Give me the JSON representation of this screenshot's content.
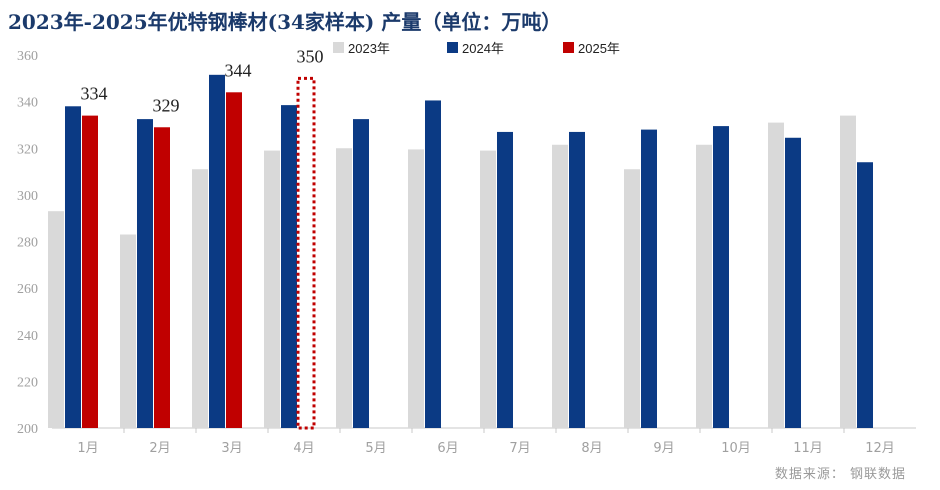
{
  "title": "2023年-2025年优特钢棒材(34家样本) 产量（单位：万吨）",
  "source": "数据来源：  钢联数据",
  "colors": {
    "s2023": "#d9d9d9",
    "s2024": "#0b3a84",
    "s2025": "#c00000",
    "forecast": "#c00000"
  },
  "chart_data": {
    "type": "bar",
    "title": "2023年-2025年优特钢棒材(34家样本) 产量（单位：万吨）",
    "xlabel": "",
    "ylabel": "",
    "ylim": [
      200,
      360
    ],
    "yticks": [
      200,
      220,
      240,
      260,
      280,
      300,
      320,
      340,
      360
    ],
    "grid": false,
    "legend_position": "top-center",
    "categories": [
      "1月",
      "2月",
      "3月",
      "4月",
      "5月",
      "6月",
      "7月",
      "8月",
      "9月",
      "10月",
      "11月",
      "12月"
    ],
    "series": [
      {
        "name": "2023年",
        "values": [
          293,
          283,
          311,
          319,
          320,
          319.5,
          319,
          321.5,
          311,
          321.5,
          331,
          334
        ]
      },
      {
        "name": "2024年",
        "values": [
          338,
          332.5,
          351.5,
          338.5,
          332.5,
          340.5,
          327,
          327,
          328,
          329.5,
          324.5,
          314
        ]
      },
      {
        "name": "2025年",
        "values": [
          334,
          329,
          344,
          null,
          null,
          null,
          null,
          null,
          null,
          null,
          null,
          null
        ]
      }
    ],
    "forecast": {
      "category": "4月",
      "value": 350,
      "label": "350",
      "style": "dotted-outline"
    },
    "data_labels": [
      {
        "category": "1月",
        "text": "334"
      },
      {
        "category": "2月",
        "text": "329"
      },
      {
        "category": "3月",
        "text": "344"
      },
      {
        "category": "4月",
        "text": "350"
      }
    ]
  }
}
